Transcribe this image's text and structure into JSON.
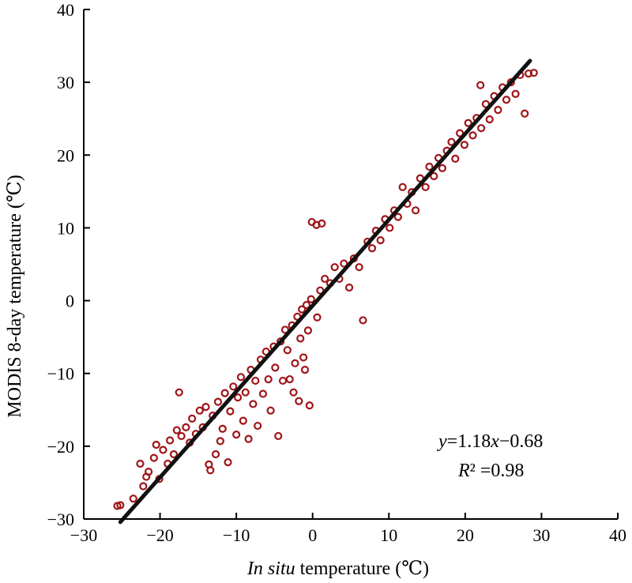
{
  "chart_data": {
    "type": "scatter",
    "xlabel_italic": "In situ",
    "xlabel_rest": " temperature (℃)",
    "ylabel": "MODIS 8-day temperature (℃)",
    "xlim": [
      -30,
      40
    ],
    "ylim": [
      -30,
      40
    ],
    "xticks": [
      -30,
      -20,
      -10,
      0,
      10,
      20,
      30,
      40
    ],
    "yticks": [
      -30,
      -20,
      -10,
      0,
      10,
      20,
      30,
      40
    ],
    "xtick_labels": [
      "−30",
      "−20",
      "−10",
      "0",
      "10",
      "20",
      "30",
      "40"
    ],
    "ytick_labels": [
      "−30",
      "−20",
      "−10",
      "0",
      "10",
      "20",
      "30",
      "40"
    ],
    "fit_line": {
      "slope": 1.18,
      "intercept": -0.68,
      "x_range": [
        -25.2,
        28.5
      ]
    },
    "equation": {
      "y": "y",
      "eq_mid": "=1.18",
      "x": "x",
      "eq_end": "−0.68"
    },
    "r2": {
      "R": "R",
      "rest": "² =0.98"
    },
    "colors": {
      "points": "#a01418",
      "fit": "#111111"
    },
    "series": [
      {
        "points": [
          [
            -25.6,
            -28.2
          ],
          [
            -25.2,
            -28.1
          ],
          [
            -23.5,
            -27.2
          ],
          [
            -22.2,
            -25.5
          ],
          [
            -21.8,
            -24.2
          ],
          [
            -22.6,
            -22.4
          ],
          [
            -21.5,
            -23.5
          ],
          [
            -20.8,
            -21.6
          ],
          [
            -20.1,
            -24.5
          ],
          [
            -20.5,
            -19.8
          ],
          [
            -19.6,
            -20.5
          ],
          [
            -19.0,
            -22.4
          ],
          [
            -18.7,
            -19.2
          ],
          [
            -18.2,
            -21.1
          ],
          [
            -17.8,
            -17.8
          ],
          [
            -17.5,
            -12.6
          ],
          [
            -17.2,
            -18.6
          ],
          [
            -16.6,
            -17.4
          ],
          [
            -16.1,
            -19.5
          ],
          [
            -15.8,
            -16.2
          ],
          [
            -15.3,
            -18.3
          ],
          [
            -14.8,
            -15.1
          ],
          [
            -14.4,
            -17.4
          ],
          [
            -14.0,
            -14.6
          ],
          [
            -13.6,
            -22.5
          ],
          [
            -13.4,
            -23.3
          ],
          [
            -13.1,
            -15.8
          ],
          [
            -12.7,
            -21.1
          ],
          [
            -12.4,
            -13.9
          ],
          [
            -12.1,
            -19.3
          ],
          [
            -11.8,
            -17.6
          ],
          [
            -11.5,
            -12.7
          ],
          [
            -11.1,
            -22.2
          ],
          [
            -10.8,
            -15.2
          ],
          [
            -10.4,
            -11.8
          ],
          [
            -10.0,
            -18.4
          ],
          [
            -9.8,
            -13.3
          ],
          [
            -9.4,
            -10.5
          ],
          [
            -9.1,
            -16.5
          ],
          [
            -8.8,
            -12.6
          ],
          [
            -8.4,
            -19.0
          ],
          [
            -8.1,
            -9.5
          ],
          [
            -7.8,
            -14.2
          ],
          [
            -7.5,
            -11.0
          ],
          [
            -7.2,
            -17.2
          ],
          [
            -6.8,
            -8.1
          ],
          [
            -6.5,
            -12.8
          ],
          [
            -6.1,
            -7.0
          ],
          [
            -5.8,
            -10.8
          ],
          [
            -5.5,
            -15.1
          ],
          [
            -5.1,
            -6.3
          ],
          [
            -4.9,
            -9.2
          ],
          [
            -4.5,
            -18.6
          ],
          [
            -4.2,
            -5.6
          ],
          [
            -3.9,
            -11.0
          ],
          [
            -3.6,
            -4.0
          ],
          [
            -3.3,
            -6.8
          ],
          [
            -3.0,
            -10.8
          ],
          [
            -2.7,
            -3.4
          ],
          [
            -2.5,
            -12.6
          ],
          [
            -2.3,
            -8.6
          ],
          [
            -2.0,
            -2.2
          ],
          [
            -1.8,
            -13.8
          ],
          [
            -1.6,
            -5.2
          ],
          [
            -1.4,
            -1.2
          ],
          [
            -1.2,
            -7.8
          ],
          [
            -1.0,
            -9.5
          ],
          [
            -0.8,
            -0.6
          ],
          [
            -0.6,
            -4.1
          ],
          [
            -0.4,
            -14.4
          ],
          [
            -0.2,
            0.2
          ],
          [
            -0.1,
            10.8
          ],
          [
            0.5,
            10.4
          ],
          [
            1.2,
            10.6
          ],
          [
            0.6,
            -2.3
          ],
          [
            1.0,
            1.4
          ],
          [
            1.6,
            3.0
          ],
          [
            2.3,
            2.4
          ],
          [
            2.9,
            4.6
          ],
          [
            3.5,
            3.0
          ],
          [
            4.1,
            5.1
          ],
          [
            4.8,
            1.8
          ],
          [
            5.4,
            5.8
          ],
          [
            6.1,
            4.6
          ],
          [
            6.6,
            -2.7
          ],
          [
            7.2,
            8.1
          ],
          [
            7.8,
            7.2
          ],
          [
            8.3,
            9.6
          ],
          [
            8.9,
            8.3
          ],
          [
            9.5,
            11.2
          ],
          [
            10.1,
            10.0
          ],
          [
            10.7,
            12.4
          ],
          [
            11.2,
            11.5
          ],
          [
            11.8,
            15.6
          ],
          [
            12.4,
            13.3
          ],
          [
            13.0,
            14.9
          ],
          [
            13.5,
            12.4
          ],
          [
            14.1,
            16.8
          ],
          [
            14.8,
            15.6
          ],
          [
            15.3,
            18.4
          ],
          [
            15.9,
            17.1
          ],
          [
            16.5,
            19.6
          ],
          [
            17.0,
            18.2
          ],
          [
            17.6,
            20.6
          ],
          [
            18.2,
            21.8
          ],
          [
            18.7,
            19.5
          ],
          [
            19.3,
            23.0
          ],
          [
            19.9,
            21.4
          ],
          [
            20.4,
            24.4
          ],
          [
            21.0,
            22.7
          ],
          [
            21.5,
            25.1
          ],
          [
            22.1,
            23.7
          ],
          [
            22.7,
            27.0
          ],
          [
            23.2,
            24.9
          ],
          [
            23.8,
            28.1
          ],
          [
            24.3,
            26.2
          ],
          [
            24.9,
            29.3
          ],
          [
            25.4,
            27.6
          ],
          [
            26.0,
            30.0
          ],
          [
            26.6,
            28.4
          ],
          [
            27.2,
            31.0
          ],
          [
            27.8,
            25.7
          ],
          [
            28.3,
            31.2
          ],
          [
            29.0,
            31.3
          ],
          [
            22.0,
            29.6
          ]
        ]
      }
    ]
  }
}
